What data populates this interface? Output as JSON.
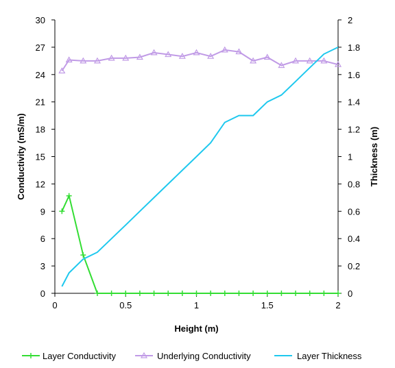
{
  "chart_data": {
    "type": "line",
    "title": "",
    "xlabel": "Height (m)",
    "ylabel_left": "Conductivity (mS/m)",
    "ylabel_right": "Thickness (m)",
    "xlim": [
      0,
      2
    ],
    "ylim_left": [
      0,
      30
    ],
    "ylim_right": [
      0,
      2
    ],
    "x_ticks": [
      "0",
      "0.5",
      "1",
      "1.5",
      "2"
    ],
    "y_left_ticks": [
      "0",
      "3",
      "6",
      "9",
      "12",
      "15",
      "18",
      "21",
      "24",
      "27",
      "30"
    ],
    "y_right_ticks": [
      "0",
      "0.2",
      "0.4",
      "0.6",
      "0.8",
      "1",
      "1.2",
      "1.4",
      "1.6",
      "1.8",
      "2"
    ],
    "grid": false,
    "legend_position": "bottom",
    "series": [
      {
        "name": "Layer Conductivity",
        "axis": "left",
        "color": "#33dd33",
        "marker": "plus",
        "x": [
          0.05,
          0.1,
          0.2,
          0.3,
          0.4,
          0.5,
          0.6,
          0.7,
          0.8,
          0.9,
          1.0,
          1.1,
          1.2,
          1.3,
          1.4,
          1.5,
          1.6,
          1.7,
          1.8,
          1.9,
          2.0
        ],
        "y": [
          9.0,
          10.7,
          4.2,
          0.0,
          0.0,
          0.0,
          0.0,
          0.0,
          0.0,
          0.0,
          0.0,
          0.0,
          0.0,
          0.0,
          0.0,
          0.0,
          0.0,
          0.0,
          0.0,
          0.0,
          0.0
        ]
      },
      {
        "name": "Underlying Conductivity",
        "axis": "left",
        "color": "#c09ae6",
        "marker": "triangle",
        "x": [
          0.05,
          0.1,
          0.2,
          0.3,
          0.4,
          0.5,
          0.6,
          0.7,
          0.8,
          0.9,
          1.0,
          1.1,
          1.2,
          1.3,
          1.4,
          1.5,
          1.6,
          1.7,
          1.8,
          1.9,
          2.0
        ],
        "y": [
          24.4,
          25.6,
          25.5,
          25.5,
          25.8,
          25.8,
          25.9,
          26.4,
          26.2,
          26.0,
          26.4,
          26.0,
          26.7,
          26.5,
          25.5,
          25.9,
          25.0,
          25.5,
          25.5,
          25.5,
          25.1
        ]
      },
      {
        "name": "Layer Thickness",
        "axis": "right",
        "color": "#1ec8ee",
        "marker": "none",
        "x": [
          0.05,
          0.1,
          0.2,
          0.3,
          0.4,
          0.5,
          0.6,
          0.7,
          0.8,
          0.9,
          1.0,
          1.1,
          1.2,
          1.3,
          1.4,
          1.5,
          1.6,
          1.7,
          1.8,
          1.9,
          2.0
        ],
        "y": [
          0.05,
          0.15,
          0.25,
          0.3,
          0.4,
          0.5,
          0.6,
          0.7,
          0.8,
          0.9,
          1.0,
          1.1,
          1.25,
          1.3,
          1.3,
          1.4,
          1.45,
          1.55,
          1.65,
          1.75,
          1.8
        ]
      }
    ]
  }
}
